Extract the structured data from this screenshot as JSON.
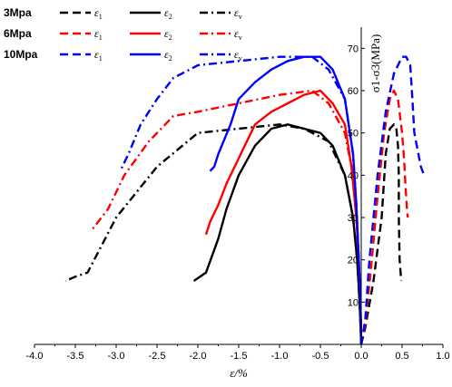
{
  "chart_data": {
    "type": "line",
    "xlabel": "ε/%",
    "ylabel": "σ1-σ3(MPa)",
    "xlim": [
      -4.0,
      1.0
    ],
    "ylim": [
      0,
      75
    ],
    "xticks": [
      -4.0,
      -3.5,
      -3.0,
      -2.5,
      -2.0,
      -1.5,
      -1.0,
      -0.5,
      0.0,
      0.5,
      1.0
    ],
    "yticks": [
      10,
      20,
      30,
      40,
      50,
      60,
      70
    ],
    "xtick_labels": [
      "-4.0",
      "-3.5",
      "-3.0",
      "-2.5",
      "-2.0",
      "-1.5",
      "-1.0",
      "-0.5",
      "0.0",
      "0.5",
      "1.0"
    ],
    "ytick_labels": [
      "10",
      "20",
      "30",
      "40",
      "50",
      "60",
      "70"
    ],
    "y_axis_position_x": 0.0,
    "grid": false,
    "legend_position": "top-left",
    "legend": {
      "groups": [
        {
          "label": "3Mpa",
          "color": "#000000"
        },
        {
          "label": "6Mpa",
          "color": "#ff0000"
        },
        {
          "label": "10Mpa",
          "color": "#0000ff"
        }
      ],
      "entries": [
        {
          "symbol": "ε",
          "sub": "1",
          "dash": "dashed"
        },
        {
          "symbol": "ε",
          "sub": "2",
          "dash": "solid"
        },
        {
          "symbol": "ε",
          "sub": "v",
          "dash": "dashdot"
        }
      ]
    },
    "series": [
      {
        "group": "3Mpa",
        "strain": "eps1",
        "color": "#000000",
        "dash": "dashed",
        "x": [
          0.0,
          0.05,
          0.15,
          0.25,
          0.3,
          0.35,
          0.4,
          0.43,
          0.45,
          0.46,
          0.46,
          0.47,
          0.49
        ],
        "y": [
          0,
          4,
          15,
          30,
          45,
          51,
          52,
          51,
          47,
          40,
          30,
          20,
          15
        ]
      },
      {
        "group": "3Mpa",
        "strain": "eps2",
        "color": "#000000",
        "dash": "solid",
        "x": [
          0.0,
          -0.02,
          -0.05,
          -0.1,
          -0.2,
          -0.35,
          -0.5,
          -0.7,
          -0.9,
          -1.1,
          -1.3,
          -1.5,
          -1.65,
          -1.75,
          -1.9,
          -2.05
        ],
        "y": [
          0,
          10,
          20,
          30,
          40,
          47,
          50,
          51,
          52,
          51,
          47,
          40,
          32,
          25,
          17,
          15
        ]
      },
      {
        "group": "3Mpa",
        "strain": "eps_v",
        "color": "#000000",
        "dash": "dashdot",
        "x": [
          0.0,
          -0.02,
          -0.05,
          -0.1,
          -0.2,
          -0.4,
          -0.7,
          -1.0,
          -1.5,
          -2.0,
          -2.5,
          -3.0,
          -3.35,
          -3.5,
          -3.62
        ],
        "y": [
          0,
          10,
          20,
          30,
          40,
          48,
          51,
          52,
          51,
          50,
          42,
          30,
          17,
          16,
          15
        ]
      },
      {
        "group": "6Mpa",
        "strain": "eps1",
        "color": "#ff0000",
        "dash": "dashed",
        "x": [
          0.0,
          0.05,
          0.12,
          0.2,
          0.28,
          0.35,
          0.4,
          0.45,
          0.5,
          0.52,
          0.53,
          0.54,
          0.56,
          0.57
        ],
        "y": [
          0,
          5,
          18,
          35,
          50,
          58,
          60,
          58,
          50,
          45,
          42,
          38,
          32,
          30
        ]
      },
      {
        "group": "6Mpa",
        "strain": "eps2",
        "color": "#ff0000",
        "dash": "solid",
        "x": [
          0.0,
          -0.01,
          -0.03,
          -0.06,
          -0.12,
          -0.2,
          -0.35,
          -0.5,
          -0.7,
          -0.9,
          -1.1,
          -1.3,
          -1.45,
          -1.55,
          -1.65,
          -1.75,
          -1.85,
          -1.9
        ],
        "y": [
          0,
          10,
          20,
          30,
          42,
          52,
          57,
          60,
          59,
          57,
          55,
          52,
          46,
          42,
          38,
          33,
          29,
          26
        ]
      },
      {
        "group": "6Mpa",
        "strain": "eps_v",
        "color": "#ff0000",
        "dash": "dashdot",
        "x": [
          0.0,
          -0.01,
          -0.03,
          -0.06,
          -0.1,
          -0.2,
          -0.4,
          -0.6,
          -1.0,
          -1.5,
          -2.0,
          -2.3,
          -2.6,
          -2.9,
          -3.1,
          -3.3
        ],
        "y": [
          0,
          10,
          20,
          30,
          40,
          50,
          57,
          60,
          59,
          57,
          55,
          54,
          48,
          40,
          32,
          27
        ]
      },
      {
        "group": "10Mpa",
        "strain": "eps1",
        "color": "#0000ff",
        "dash": "dashed",
        "x": [
          0.0,
          0.05,
          0.1,
          0.2,
          0.3,
          0.4,
          0.5,
          0.55,
          0.6,
          0.62,
          0.65,
          0.7,
          0.73,
          0.77
        ],
        "y": [
          0,
          6,
          20,
          40,
          55,
          64,
          68,
          68,
          66,
          60,
          50,
          45,
          42,
          40
        ]
      },
      {
        "group": "10Mpa",
        "strain": "eps2",
        "color": "#0000ff",
        "dash": "solid",
        "x": [
          0.0,
          -0.01,
          -0.03,
          -0.06,
          -0.1,
          -0.2,
          -0.35,
          -0.5,
          -0.7,
          -0.9,
          -1.1,
          -1.3,
          -1.5,
          -1.6,
          -1.75,
          -1.8,
          -1.85
        ],
        "y": [
          0,
          10,
          20,
          33,
          45,
          58,
          65,
          68,
          68,
          67,
          65,
          62,
          58,
          52,
          45,
          42,
          41
        ]
      },
      {
        "group": "10Mpa",
        "strain": "eps_v",
        "color": "#0000ff",
        "dash": "dashdot",
        "x": [
          0.0,
          -0.01,
          -0.03,
          -0.06,
          -0.1,
          -0.2,
          -0.4,
          -0.6,
          -1.0,
          -1.5,
          -2.0,
          -2.3,
          -2.5,
          -2.7,
          -2.85,
          -2.95
        ],
        "y": [
          0,
          10,
          20,
          33,
          45,
          58,
          65,
          68,
          68,
          67,
          66,
          63,
          58,
          52,
          45,
          41
        ]
      }
    ]
  }
}
